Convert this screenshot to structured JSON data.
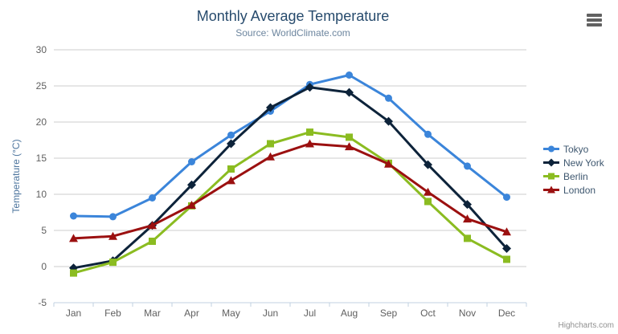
{
  "chart_data": {
    "type": "line",
    "title": "Monthly Average Temperature",
    "subtitle": "Source: WorldClimate.com",
    "xlabel": "",
    "ylabel": "Temperature (°C)",
    "categories": [
      "Jan",
      "Feb",
      "Mar",
      "Apr",
      "May",
      "Jun",
      "Jul",
      "Aug",
      "Sep",
      "Oct",
      "Nov",
      "Dec"
    ],
    "ylim": [
      -5,
      30
    ],
    "y_ticks": [
      -5,
      0,
      5,
      10,
      15,
      20,
      25,
      30
    ],
    "grid": true,
    "legend_position": "right-middle",
    "series": [
      {
        "name": "Tokyo",
        "color": "#3b85da",
        "marker": "circle",
        "values": [
          7.0,
          6.9,
          9.5,
          14.5,
          18.2,
          21.5,
          25.2,
          26.5,
          23.3,
          18.3,
          13.9,
          9.6
        ]
      },
      {
        "name": "New York",
        "color": "#0d233a",
        "marker": "diamond",
        "values": [
          -0.2,
          0.8,
          5.7,
          11.3,
          17.0,
          22.0,
          24.8,
          24.1,
          20.1,
          14.1,
          8.6,
          2.5
        ]
      },
      {
        "name": "Berlin",
        "color": "#8bbc21",
        "marker": "square",
        "values": [
          -0.9,
          0.6,
          3.5,
          8.4,
          13.5,
          17.0,
          18.6,
          17.9,
          14.3,
          9.0,
          3.9,
          1.0
        ]
      },
      {
        "name": "London",
        "color": "#9b1010",
        "marker": "triangle",
        "values": [
          3.9,
          4.2,
          5.7,
          8.5,
          11.9,
          15.2,
          17.0,
          16.6,
          14.2,
          10.3,
          6.6,
          4.8
        ]
      }
    ]
  },
  "context_menu": {
    "icon": "hamburger-icon"
  },
  "credits": {
    "label": "Highcharts.com"
  },
  "theme": {
    "title_color": "#274b6d",
    "subtitle_color": "#6d869f",
    "yaxis_title_color": "#4d759e",
    "axis_label_color": "#606060",
    "grid_line_color": "#cccccc",
    "axis_line_color": "#c0d0e0",
    "legend_color": "#3e576f",
    "credits_color": "#909090",
    "burger_color": "#616161"
  }
}
